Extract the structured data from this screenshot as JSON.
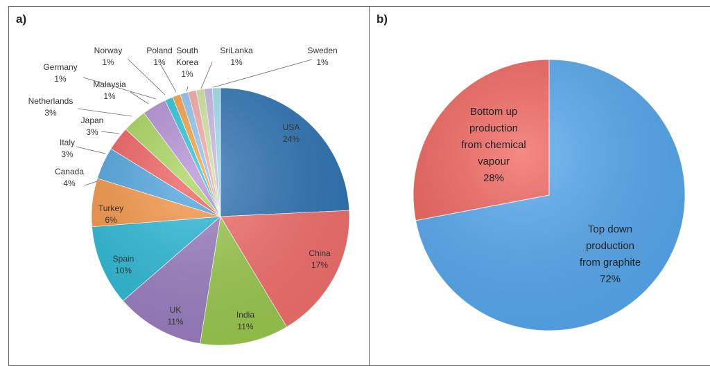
{
  "panels": {
    "a": {
      "label": "a)"
    },
    "b": {
      "label": "b)"
    }
  },
  "chart_data": [
    {
      "type": "pie",
      "panel": "a)",
      "slices": [
        {
          "name": "USA",
          "value": 24,
          "label": "24%",
          "color": "#2E75B6"
        },
        {
          "name": "China",
          "value": 17,
          "label": "17%",
          "color": "#F4706C"
        },
        {
          "name": "India",
          "value": 11,
          "label": "11%",
          "color": "#9BCB4E"
        },
        {
          "name": "UK",
          "value": 11,
          "label": "11%",
          "color": "#9B7FC2"
        },
        {
          "name": "Spain",
          "value": 10,
          "label": "10%",
          "color": "#2BBBD8"
        },
        {
          "name": "Turkey",
          "value": 6,
          "label": "6%",
          "color": "#F79646"
        },
        {
          "name": "Canada",
          "value": 4,
          "label": "4%",
          "color": "#4FA6E0"
        },
        {
          "name": "Italy",
          "value": 3,
          "label": "3%",
          "color": "#F25F5F"
        },
        {
          "name": "Japan",
          "value": 3,
          "label": "3%",
          "color": "#A8D65B"
        },
        {
          "name": "Netherlands",
          "value": 3,
          "label": "3%",
          "color": "#B48FD6"
        },
        {
          "name": "Malaysia",
          "value": 1,
          "label": "1%",
          "color": "#26C6DA"
        },
        {
          "name": "Germany",
          "value": 1,
          "label": "1%",
          "color": "#F9A040"
        },
        {
          "name": "Norway",
          "value": 1,
          "label": "1%",
          "color": "#8EC6F2"
        },
        {
          "name": "Poland",
          "value": 1,
          "label": "1%",
          "color": "#F8A8A8"
        },
        {
          "name": "South Korea",
          "value": 1,
          "label": "1%",
          "color": "#CDE6A0"
        },
        {
          "name": "SriLanka",
          "value": 1,
          "label": "1%",
          "color": "#C9B8E4"
        },
        {
          "name": "Sweden",
          "value": 1,
          "label": "1%",
          "color": "#9EDFF0"
        }
      ]
    },
    {
      "type": "pie",
      "panel": "b)",
      "slices": [
        {
          "name": "Top down production from graphite",
          "value": 72,
          "label": "72%",
          "color": "#55A9F0"
        },
        {
          "name": "Bottom up production from chemical vapour",
          "value": 28,
          "label": "28%",
          "color": "#F2635C"
        }
      ]
    }
  ]
}
